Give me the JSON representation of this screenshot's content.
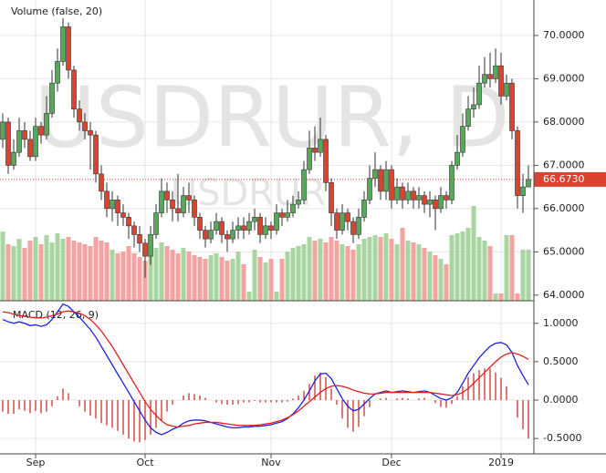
{
  "chart_data": [
    {
      "type": "candlestick",
      "watermark": "USDRUR, D",
      "watermark_small": "USDRUR",
      "categories": [
        null,
        null,
        null,
        null,
        null,
        null,
        "Sep",
        null,
        null,
        null,
        null,
        null,
        null,
        null,
        null,
        null,
        null,
        null,
        null,
        null,
        null,
        null,
        null,
        null,
        null,
        null,
        "Oct",
        null,
        null,
        null,
        null,
        null,
        null,
        null,
        null,
        null,
        null,
        null,
        null,
        null,
        null,
        null,
        null,
        null,
        null,
        null,
        null,
        null,
        null,
        "Nov",
        null,
        null,
        null,
        null,
        null,
        null,
        null,
        null,
        null,
        null,
        null,
        null,
        null,
        null,
        null,
        null,
        null,
        null,
        null,
        null,
        null,
        "Dec",
        null,
        null,
        null,
        null,
        null,
        null,
        null,
        null,
        null,
        null,
        null,
        null,
        null,
        null,
        null,
        null,
        null,
        null,
        null,
        "2019",
        null,
        null,
        null,
        null,
        null
      ],
      "open": [
        67.6,
        68.0,
        67.0,
        67.3,
        67.8,
        67.6,
        67.2,
        67.9,
        67.7,
        68.2,
        68.9,
        69.4,
        70.2,
        69.2,
        68.3,
        68.0,
        67.8,
        67.7,
        66.8,
        66.4,
        66.0,
        66.2,
        65.9,
        65.8,
        65.6,
        65.4,
        65.2,
        64.9,
        65.4,
        65.9,
        66.4,
        66.2,
        66.0,
        65.9,
        66.3,
        66.2,
        65.8,
        65.5,
        65.3,
        65.5,
        65.7,
        65.4,
        65.3,
        65.5,
        65.6,
        65.5,
        65.7,
        65.8,
        65.4,
        65.6,
        65.5,
        65.9,
        65.8,
        65.9,
        66.1,
        66.2,
        66.9,
        67.4,
        67.3,
        67.6,
        66.6,
        65.9,
        65.5,
        65.9,
        65.7,
        65.4,
        65.8,
        66.2,
        66.7,
        66.9,
        66.4,
        66.9,
        66.2,
        66.5,
        66.2,
        66.4,
        66.2,
        66.3,
        66.1,
        66.2,
        66.0,
        66.3,
        66.2,
        67.0,
        67.3,
        67.9,
        68.3,
        68.4,
        68.9,
        69.1,
        69.0,
        69.3,
        68.6,
        68.9,
        67.8,
        66.3,
        66.5
      ],
      "high": [
        68.2,
        68.1,
        67.6,
        68.1,
        68.0,
        67.8,
        68.1,
        68.0,
        68.6,
        69.2,
        69.7,
        70.4,
        70.3,
        69.3,
        68.5,
        68.2,
        68.0,
        67.8,
        67.0,
        66.6,
        66.4,
        66.3,
        66.1,
        65.9,
        65.7,
        65.6,
        65.3,
        65.6,
        66.1,
        66.7,
        66.6,
        66.4,
        66.8,
        66.5,
        66.6,
        66.3,
        65.9,
        65.6,
        65.7,
        65.9,
        65.8,
        65.5,
        65.7,
        65.8,
        65.8,
        65.9,
        66.0,
        65.9,
        65.8,
        65.7,
        66.1,
        66.0,
        66.2,
        66.3,
        66.4,
        67.1,
        67.8,
        67.9,
        68.1,
        67.7,
        66.7,
        66.0,
        66.1,
        66.0,
        65.8,
        66.0,
        66.4,
        67.0,
        67.3,
        67.0,
        67.1,
        67.0,
        66.7,
        66.6,
        66.6,
        66.5,
        66.5,
        66.4,
        66.4,
        66.3,
        66.5,
        66.4,
        67.1,
        67.7,
        68.2,
        68.6,
        68.8,
        69.3,
        69.5,
        69.6,
        69.7,
        69.6,
        69.1,
        69.0,
        67.9,
        66.8,
        67.0
      ],
      "low": [
        67.4,
        66.8,
        66.9,
        67.2,
        67.4,
        67.1,
        67.1,
        67.5,
        67.6,
        68.1,
        68.7,
        69.3,
        69.0,
        68.1,
        67.8,
        67.6,
        66.9,
        66.6,
        66.2,
        65.8,
        65.7,
        65.6,
        65.6,
        65.3,
        65.1,
        65.0,
        64.4,
        64.7,
        65.3,
        65.8,
        65.9,
        65.7,
        65.7,
        65.8,
        65.9,
        65.6,
        65.3,
        65.1,
        65.2,
        65.4,
        65.2,
        65.0,
        65.2,
        65.3,
        65.3,
        65.4,
        65.5,
        65.2,
        65.3,
        65.3,
        65.4,
        65.6,
        65.7,
        65.8,
        66.0,
        66.1,
        66.8,
        67.1,
        67.2,
        66.4,
        65.6,
        65.3,
        65.4,
        65.5,
        65.2,
        65.3,
        65.7,
        66.1,
        66.5,
        66.2,
        66.2,
        66.0,
        66.1,
        66.0,
        66.1,
        66.0,
        66.0,
        65.9,
        65.8,
        65.5,
        65.9,
        66.0,
        66.1,
        66.9,
        67.2,
        67.8,
        68.1,
        68.3,
        68.8,
        68.8,
        68.9,
        68.4,
        68.5,
        67.6,
        66.0,
        65.9,
        66.5
      ],
      "close": [
        68.0,
        67.0,
        67.3,
        67.8,
        67.6,
        67.2,
        67.9,
        67.7,
        68.2,
        68.9,
        69.4,
        70.2,
        69.2,
        68.3,
        68.0,
        67.8,
        67.7,
        66.8,
        66.4,
        66.0,
        66.2,
        65.9,
        65.8,
        65.6,
        65.4,
        65.2,
        64.9,
        65.4,
        65.9,
        66.4,
        66.2,
        66.0,
        65.9,
        66.3,
        66.2,
        65.8,
        65.5,
        65.3,
        65.5,
        65.7,
        65.4,
        65.3,
        65.5,
        65.6,
        65.5,
        65.7,
        65.8,
        65.4,
        65.6,
        65.5,
        65.9,
        65.8,
        65.9,
        66.1,
        66.2,
        66.9,
        67.4,
        67.3,
        67.6,
        66.6,
        65.9,
        65.5,
        65.9,
        65.7,
        65.4,
        65.8,
        66.2,
        66.7,
        66.9,
        66.4,
        66.9,
        66.2,
        66.5,
        66.2,
        66.4,
        66.2,
        66.3,
        66.1,
        66.2,
        66.0,
        66.3,
        66.2,
        67.0,
        67.3,
        67.9,
        68.3,
        68.4,
        68.9,
        69.1,
        69.0,
        69.3,
        68.6,
        68.9,
        67.8,
        66.3,
        66.5,
        66.673
      ],
      "up_color": "#58a85a",
      "down_color": "#d9432f",
      "ylim": [
        63.87,
        70.82
      ],
      "yticks": [
        {
          "value": 64,
          "label": "64.0000"
        },
        {
          "value": 65,
          "label": "65.0000"
        },
        {
          "value": 66,
          "label": "66.0000"
        },
        {
          "value": 67,
          "label": "67.0000"
        },
        {
          "value": 68,
          "label": "68.0000"
        },
        {
          "value": 69,
          "label": "69.0000"
        },
        {
          "value": 70,
          "label": "70.0000"
        }
      ],
      "grid": true,
      "last_price": {
        "value": 66.673,
        "label": "66.6730",
        "color": "#d9432f"
      },
      "volume": {
        "label": "Volume (false, 20)",
        "ylim": [
          0,
          330
        ],
        "up_color": "#a8d5a0",
        "down_color": "#f4a3a3",
        "values": [
          76,
          62,
          60,
          68,
          58,
          66,
          70,
          62,
          72,
          64,
          74,
          68,
          70,
          66,
          64,
          62,
          60,
          70,
          66,
          64,
          56,
          52,
          54,
          60,
          52,
          48,
          44,
          62,
          58,
          64,
          60,
          56,
          52,
          58,
          54,
          50,
          48,
          46,
          50,
          52,
          48,
          44,
          46,
          54,
          40,
          10,
          56,
          48,
          42,
          46,
          10,
          46,
          54,
          58,
          60,
          62,
          70,
          66,
          68,
          64,
          70,
          66,
          62,
          60,
          56,
          62,
          68,
          70,
          72,
          70,
          74,
          68,
          62,
          80,
          66,
          64,
          62,
          58,
          54,
          50,
          46,
          40,
          72,
          74,
          76,
          80,
          104,
          70,
          66,
          60,
          8,
          8,
          72,
          72,
          8,
          56,
          56
        ]
      }
    },
    {
      "type": "macd",
      "title": "MACD (12, 26, 9)",
      "ylim": [
        -0.7,
        1.27
      ],
      "yticks": [
        {
          "value": 1,
          "label": "1.0000"
        },
        {
          "value": 0.5,
          "label": "0.5000"
        },
        {
          "value": 0,
          "label": "0.0000"
        },
        {
          "value": -0.5,
          "label": "-0.5000"
        }
      ],
      "series": [
        {
          "color": "#2020e0",
          "values": [
            1.05,
            1.02,
            1.0,
            1.02,
            1.0,
            0.97,
            0.98,
            0.96,
            0.98,
            1.05,
            1.15,
            1.25,
            1.22,
            1.15,
            1.08,
            1.0,
            0.92,
            0.82,
            0.7,
            0.58,
            0.46,
            0.34,
            0.22,
            0.1,
            -0.02,
            -0.14,
            -0.26,
            -0.36,
            -0.42,
            -0.45,
            -0.42,
            -0.38,
            -0.35,
            -0.3,
            -0.27,
            -0.26,
            -0.26,
            -0.27,
            -0.29,
            -0.31,
            -0.33,
            -0.35,
            -0.36,
            -0.36,
            -0.35,
            -0.35,
            -0.34,
            -0.34,
            -0.33,
            -0.32,
            -0.3,
            -0.28,
            -0.24,
            -0.18,
            -0.1,
            0.0,
            0.12,
            0.25,
            0.34,
            0.35,
            0.28,
            0.15,
            0.02,
            -0.08,
            -0.14,
            -0.12,
            -0.05,
            0.02,
            0.08,
            0.1,
            0.12,
            0.1,
            0.11,
            0.12,
            0.11,
            0.1,
            0.11,
            0.12,
            0.1,
            0.06,
            0.02,
            0.0,
            0.03,
            0.1,
            0.22,
            0.35,
            0.45,
            0.55,
            0.63,
            0.7,
            0.74,
            0.75,
            0.72,
            0.62,
            0.45,
            0.32,
            0.2
          ]
        },
        {
          "color": "#e02020",
          "values": [
            1.15,
            1.14,
            1.12,
            1.1,
            1.09,
            1.08,
            1.07,
            1.07,
            1.08,
            1.1,
            1.12,
            1.15,
            1.16,
            1.15,
            1.13,
            1.1,
            1.05,
            0.98,
            0.9,
            0.8,
            0.7,
            0.58,
            0.46,
            0.34,
            0.22,
            0.1,
            -0.02,
            -0.12,
            -0.2,
            -0.27,
            -0.32,
            -0.34,
            -0.35,
            -0.34,
            -0.33,
            -0.31,
            -0.3,
            -0.29,
            -0.29,
            -0.29,
            -0.3,
            -0.31,
            -0.32,
            -0.33,
            -0.33,
            -0.33,
            -0.33,
            -0.32,
            -0.31,
            -0.3,
            -0.28,
            -0.26,
            -0.23,
            -0.19,
            -0.14,
            -0.08,
            -0.02,
            0.04,
            0.1,
            0.15,
            0.18,
            0.19,
            0.18,
            0.16,
            0.13,
            0.11,
            0.09,
            0.08,
            0.08,
            0.09,
            0.1,
            0.1,
            0.1,
            0.1,
            0.1,
            0.1,
            0.1,
            0.1,
            0.1,
            0.09,
            0.08,
            0.07,
            0.06,
            0.07,
            0.1,
            0.15,
            0.22,
            0.29,
            0.36,
            0.43,
            0.5,
            0.56,
            0.6,
            0.62,
            0.6,
            0.57,
            0.53
          ]
        }
      ],
      "histogram": {
        "color": "#c42020",
        "values": [
          -0.15,
          -0.18,
          -0.18,
          -0.12,
          -0.14,
          -0.17,
          -0.14,
          -0.17,
          -0.15,
          -0.08,
          0.05,
          0.15,
          0.09,
          0.0,
          -0.08,
          -0.15,
          -0.2,
          -0.24,
          -0.3,
          -0.33,
          -0.36,
          -0.4,
          -0.45,
          -0.5,
          -0.54,
          -0.55,
          -0.52,
          -0.45,
          -0.36,
          -0.27,
          -0.15,
          -0.06,
          0.0,
          0.06,
          0.09,
          0.08,
          0.06,
          0.03,
          0.0,
          -0.03,
          -0.05,
          -0.06,
          -0.06,
          -0.05,
          -0.03,
          -0.03,
          -0.01,
          -0.03,
          -0.03,
          -0.03,
          -0.03,
          -0.03,
          -0.02,
          0.02,
          0.06,
          0.12,
          0.21,
          0.32,
          0.36,
          0.3,
          0.15,
          -0.06,
          -0.24,
          -0.36,
          -0.41,
          -0.35,
          -0.21,
          -0.09,
          0.0,
          0.02,
          0.03,
          0.0,
          0.02,
          0.03,
          0.02,
          0.0,
          0.02,
          0.03,
          0.0,
          -0.04,
          -0.09,
          -0.1,
          -0.05,
          0.05,
          0.18,
          0.3,
          0.35,
          0.39,
          0.41,
          0.41,
          0.36,
          0.29,
          0.18,
          0.0,
          -0.23,
          -0.38,
          -0.5
        ]
      }
    }
  ]
}
